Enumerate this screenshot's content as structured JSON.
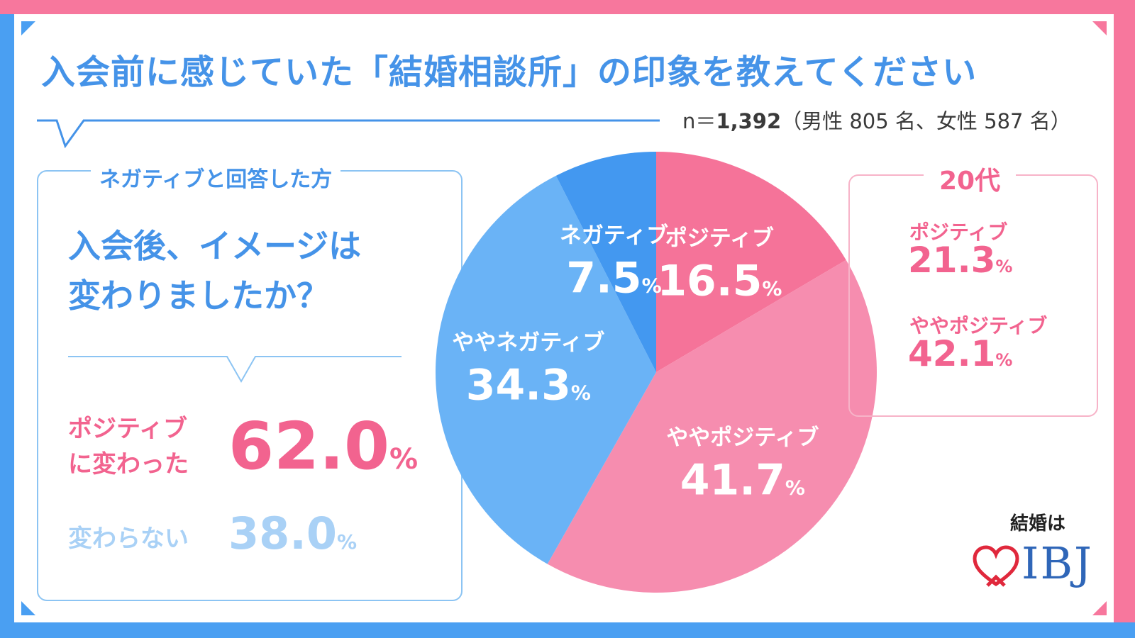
{
  "title": "入会前に感じていた「結婚相談所」の印象を教えてください",
  "sample": {
    "prefix": "n＝",
    "n": "1,392",
    "detail": "（男性 805 名、女性 587 名）"
  },
  "left_box": {
    "label": "ネガティブと回答した方",
    "question_lines": [
      "入会後、イメージは",
      "変わりましたか？"
    ],
    "positive_label_lines": [
      "ポジティブ",
      "に変わった"
    ],
    "positive_value": "62.0",
    "unchanged_label": "変わらない",
    "unchanged_value": "38.0",
    "percent_sign": "%"
  },
  "right_box": {
    "label": "20代",
    "items": [
      {
        "label": "ポジティブ",
        "value": "21.3"
      },
      {
        "label": "ややポジティブ",
        "value": "42.1"
      }
    ],
    "percent_sign": "%"
  },
  "logo": {
    "tagline": "結婚は",
    "brand": "IBJ"
  },
  "colors": {
    "positive": "#f57399",
    "somewhat_positive": "#f68daf",
    "somewhat_negative": "#6ab3f6",
    "negative": "#4398f0",
    "title_blue": "#4593e8",
    "accent_pink": "#f2638f"
  },
  "chart_data": {
    "type": "pie",
    "title": "入会前に感じていた「結婚相談所」の印象を教えてください",
    "start": "top, clockwise",
    "slices": [
      {
        "label": "ポジティブ",
        "value": 16.5,
        "color": "#f57399"
      },
      {
        "label": "ややポジティブ",
        "value": 41.7,
        "color": "#f68daf"
      },
      {
        "label": "ややネガティブ",
        "value": 34.3,
        "color": "#6ab3f6"
      },
      {
        "label": "ネガティブ",
        "value": 7.5,
        "color": "#4398f0"
      }
    ],
    "unit": "%"
  }
}
